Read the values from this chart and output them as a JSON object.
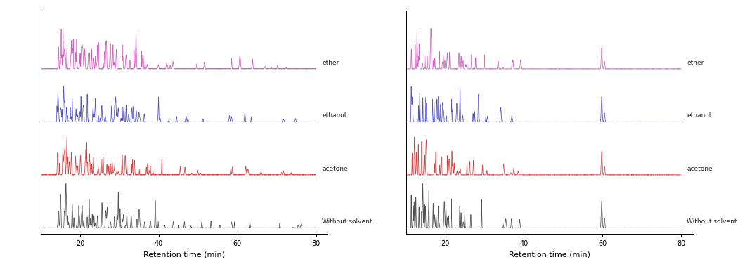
{
  "xlim_left": [
    10,
    80
  ],
  "xlim_right": [
    10,
    80
  ],
  "xticks": [
    20,
    40,
    60,
    80
  ],
  "xlabel": "Retention time (min)",
  "colors": {
    "ether": "#cc55bb",
    "ethanol": "#4444cc",
    "acetone": "#cc3333",
    "without": "#444444"
  },
  "labels": {
    "ether": "ether",
    "ethanol": "ethanol",
    "acetone": "acetone",
    "without": "Without solvent"
  },
  "offsets": {
    "ether": 3.15,
    "ethanol": 2.1,
    "acetone": 1.05,
    "without": 0.0
  },
  "trace_scale": {
    "ether": 0.8,
    "ethanol": 0.7,
    "acetone": 0.75,
    "without": 0.88
  },
  "background": "#ffffff",
  "figsize": [
    10.6,
    3.83
  ],
  "dpi": 100
}
